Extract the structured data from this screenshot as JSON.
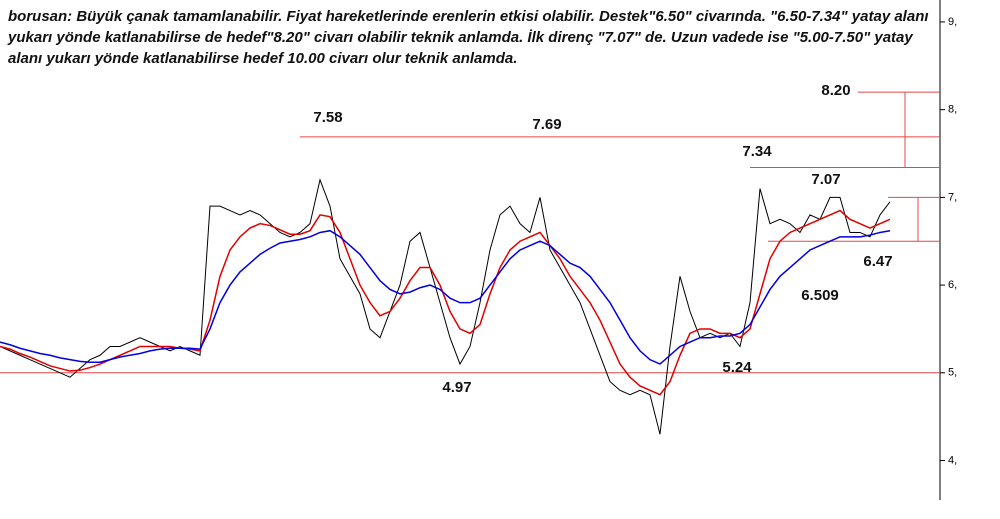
{
  "chart_data": {
    "type": "line",
    "title": "borusan: Büyük çanak tamamlanabilir. Fiyat hareketlerinde erenlerin etkisi olabilir. Destek\"6.50\" civarında. \"6.50-7.34\" yatay alanı yukarı yönde katlanabilirse de hedef\"8.20\" civarı olabilir teknik anlamda. İlk direnç \"7.07\" de. Uzun vadede ise \"5.00-7.50\" yatay alanı yukarı yönde katlanabilirse hedef 10.00 civarı olur teknik anlamda.",
    "ylim": [
      3.55,
      9.25
    ],
    "yticks": [
      {
        "value": 4,
        "label": "4,"
      },
      {
        "value": 5,
        "label": "5,"
      },
      {
        "value": 6,
        "label": "6,"
      },
      {
        "value": 7,
        "label": "7,"
      },
      {
        "value": 8,
        "label": "8,"
      },
      {
        "value": 9,
        "label": "9,"
      }
    ],
    "series": [
      {
        "color": "#000000",
        "values": [
          5.3,
          5.25,
          5.2,
          5.15,
          5.1,
          5.05,
          5.0,
          4.95,
          5.05,
          5.15,
          5.2,
          5.3,
          5.3,
          5.35,
          5.4,
          5.35,
          5.3,
          5.25,
          5.3,
          5.25,
          5.2,
          6.9,
          6.9,
          6.85,
          6.8,
          6.85,
          6.8,
          6.7,
          6.6,
          6.55,
          6.6,
          6.7,
          7.2,
          6.9,
          6.3,
          6.1,
          5.9,
          5.5,
          5.4,
          5.7,
          6.0,
          6.5,
          6.6,
          6.2,
          5.8,
          5.4,
          5.1,
          5.3,
          5.8,
          6.4,
          6.8,
          6.9,
          6.7,
          6.6,
          7.0,
          6.4,
          6.2,
          6.0,
          5.8,
          5.5,
          5.2,
          4.9,
          4.8,
          4.75,
          4.8,
          4.75,
          4.3,
          5.3,
          6.1,
          5.7,
          5.4,
          5.45,
          5.4,
          5.45,
          5.3,
          5.8,
          7.1,
          6.7,
          6.75,
          6.7,
          6.6,
          6.8,
          6.75,
          7.0,
          7.0,
          6.6,
          6.6,
          6.55,
          6.8,
          6.95
        ]
      },
      {
        "color": "#e00000",
        "values": [
          5.3,
          5.27,
          5.22,
          5.18,
          5.13,
          5.08,
          5.05,
          5.02,
          5.03,
          5.06,
          5.1,
          5.15,
          5.2,
          5.25,
          5.3,
          5.3,
          5.3,
          5.3,
          5.28,
          5.27,
          5.25,
          5.6,
          6.1,
          6.4,
          6.55,
          6.65,
          6.7,
          6.68,
          6.63,
          6.58,
          6.58,
          6.62,
          6.8,
          6.78,
          6.6,
          6.3,
          6.0,
          5.8,
          5.65,
          5.7,
          5.85,
          6.05,
          6.2,
          6.2,
          6.0,
          5.7,
          5.5,
          5.45,
          5.55,
          5.9,
          6.2,
          6.4,
          6.5,
          6.55,
          6.6,
          6.45,
          6.3,
          6.1,
          5.95,
          5.8,
          5.6,
          5.35,
          5.1,
          4.95,
          4.85,
          4.8,
          4.75,
          4.9,
          5.2,
          5.45,
          5.5,
          5.5,
          5.45,
          5.45,
          5.4,
          5.5,
          5.9,
          6.3,
          6.5,
          6.6,
          6.65,
          6.7,
          6.75,
          6.8,
          6.85,
          6.75,
          6.7,
          6.65,
          6.7,
          6.75
        ]
      },
      {
        "color": "#0000e0",
        "values": [
          5.35,
          5.32,
          5.28,
          5.25,
          5.22,
          5.2,
          5.17,
          5.15,
          5.13,
          5.12,
          5.12,
          5.15,
          5.18,
          5.2,
          5.22,
          5.25,
          5.27,
          5.28,
          5.28,
          5.28,
          5.27,
          5.5,
          5.8,
          6.0,
          6.15,
          6.25,
          6.35,
          6.42,
          6.48,
          6.5,
          6.52,
          6.55,
          6.6,
          6.62,
          6.55,
          6.45,
          6.35,
          6.2,
          6.05,
          5.95,
          5.9,
          5.92,
          5.97,
          6.0,
          5.95,
          5.85,
          5.8,
          5.8,
          5.85,
          6.0,
          6.15,
          6.3,
          6.4,
          6.45,
          6.5,
          6.45,
          6.35,
          6.25,
          6.2,
          6.1,
          5.95,
          5.8,
          5.6,
          5.4,
          5.25,
          5.15,
          5.1,
          5.2,
          5.3,
          5.35,
          5.4,
          5.4,
          5.42,
          5.42,
          5.45,
          5.55,
          5.75,
          5.95,
          6.1,
          6.2,
          6.3,
          6.4,
          6.45,
          6.5,
          6.55,
          6.55,
          6.55,
          6.57,
          6.6,
          6.62
        ]
      }
    ],
    "reference_lines": [
      7.69,
      5.0,
      8.2,
      7.34,
      7.0,
      6.5
    ],
    "reference_color": "#e04848",
    "annotations": [
      "7.58",
      "7.69",
      "7.34",
      "7.07",
      "8.20",
      "6.47",
      "6.509",
      "5.24",
      "4.97"
    ]
  }
}
